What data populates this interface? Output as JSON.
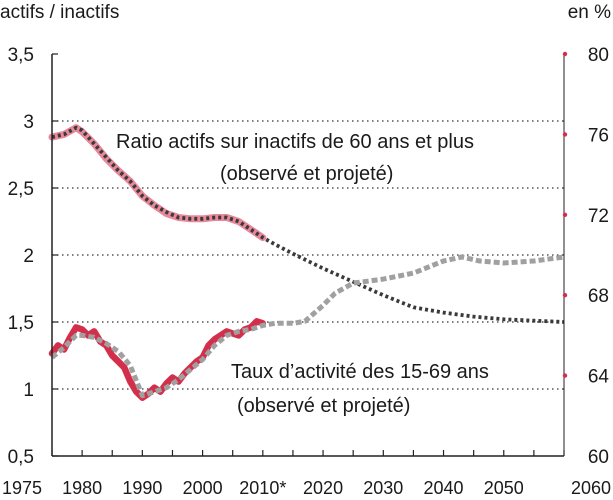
{
  "chart_data": {
    "type": "line",
    "left_axis_title": "actifs / inactifs",
    "right_axis_title": "en %",
    "left_ticks": [
      "0,5",
      "1",
      "1,5",
      "2",
      "2,5",
      "3",
      "3,5"
    ],
    "left_tick_values": [
      0.5,
      1,
      1.5,
      2,
      2.5,
      3,
      3.5
    ],
    "right_ticks": [
      "60",
      "64",
      "68",
      "72",
      "76",
      "80"
    ],
    "right_tick_values": [
      60,
      64,
      68,
      72,
      76,
      80
    ],
    "x_ticks": [
      "1975",
      "1980",
      "1990",
      "2000",
      "2010*",
      "2020",
      "2030",
      "2040",
      "2050",
      "2060"
    ],
    "x_tick_values": [
      1975,
      1980,
      1990,
      2000,
      2010,
      2020,
      2030,
      2040,
      2050,
      2060
    ],
    "xlim": [
      1975,
      2060
    ],
    "ylim_left": [
      0.5,
      3.5
    ],
    "ylim_right": [
      60,
      80
    ],
    "grid": "horizontal dotted",
    "annotations": {
      "ratio_line1": "Ratio actifs sur inactifs de 60 ans et plus",
      "ratio_line2": "(observé et projeté)",
      "taux_line1": "Taux d’activité des 15-69 ans",
      "taux_line2": "(observé et projeté)"
    },
    "series": [
      {
        "key": "ratio_observed",
        "axis": "left",
        "style": "solid",
        "color": "#e8899b",
        "x": [
          1975,
          1977,
          1979,
          1980,
          1982,
          1984,
          1986,
          1988,
          1990,
          1992,
          1994,
          1996,
          1998,
          2000,
          2002,
          2004,
          2006,
          2008,
          2010
        ],
        "y": [
          2.88,
          2.9,
          2.95,
          2.92,
          2.83,
          2.72,
          2.63,
          2.55,
          2.44,
          2.37,
          2.31,
          2.28,
          2.27,
          2.27,
          2.28,
          2.28,
          2.25,
          2.19,
          2.13
        ]
      },
      {
        "key": "ratio_projected",
        "axis": "left",
        "style": "dotted",
        "color": "#3a3a3a",
        "x": [
          1975,
          1977,
          1979,
          1980,
          1982,
          1984,
          1986,
          1988,
          1990,
          1992,
          1994,
          1996,
          1998,
          2000,
          2002,
          2004,
          2006,
          2008,
          2010,
          2012,
          2015,
          2020,
          2025,
          2030,
          2035,
          2040,
          2045,
          2050,
          2055,
          2060
        ],
        "y": [
          2.88,
          2.9,
          2.95,
          2.93,
          2.83,
          2.73,
          2.63,
          2.55,
          2.44,
          2.37,
          2.32,
          2.28,
          2.27,
          2.27,
          2.28,
          2.28,
          2.25,
          2.19,
          2.13,
          2.08,
          2.01,
          1.9,
          1.8,
          1.7,
          1.61,
          1.57,
          1.54,
          1.52,
          1.51,
          1.5
        ]
      },
      {
        "key": "taux_observed",
        "axis": "right",
        "style": "solid",
        "color": "#d42f4a",
        "x": [
          1975,
          1976,
          1977,
          1978,
          1979,
          1980,
          1981,
          1982,
          1983,
          1984,
          1985,
          1986,
          1987,
          1988,
          1989,
          1990,
          1991,
          1992,
          1993,
          1994,
          1995,
          1996,
          1997,
          1998,
          1999,
          2000,
          2001,
          2002,
          2003,
          2004,
          2005,
          2006,
          2007,
          2008,
          2009,
          2010
        ],
        "y": [
          65.1,
          65.5,
          65.3,
          65.9,
          66.4,
          66.3,
          66.0,
          66.2,
          65.7,
          65.5,
          65.0,
          64.7,
          64.4,
          63.7,
          63.2,
          62.9,
          63.1,
          63.4,
          63.2,
          63.6,
          63.9,
          63.7,
          64.1,
          64.4,
          64.7,
          64.9,
          65.5,
          65.8,
          66.0,
          66.2,
          66.1,
          66.0,
          66.3,
          66.4,
          66.7,
          66.6
        ]
      },
      {
        "key": "taux_projected",
        "axis": "right",
        "style": "dashed",
        "color": "#a0a0a0",
        "x": [
          1975,
          1977,
          1979,
          1980,
          1982,
          1984,
          1986,
          1988,
          1990,
          1992,
          1994,
          1996,
          1998,
          2000,
          2002,
          2004,
          2006,
          2008,
          2010,
          2012,
          2015,
          2017,
          2020,
          2022,
          2025,
          2030,
          2035,
          2040,
          2043,
          2046,
          2050,
          2055,
          2060
        ],
        "y": [
          64.9,
          65.4,
          66.0,
          66.0,
          65.9,
          65.6,
          65.2,
          64.5,
          63.0,
          63.2,
          63.4,
          63.8,
          64.3,
          64.8,
          65.5,
          66.0,
          66.2,
          66.3,
          66.5,
          66.6,
          66.6,
          66.7,
          67.5,
          68.1,
          68.6,
          68.8,
          69.1,
          69.7,
          69.9,
          69.7,
          69.6,
          69.7,
          69.9
        ]
      }
    ],
    "right_axis_markers": {
      "color": "#d42f4a",
      "values": [
        64,
        68,
        72,
        76,
        80
      ]
    }
  }
}
